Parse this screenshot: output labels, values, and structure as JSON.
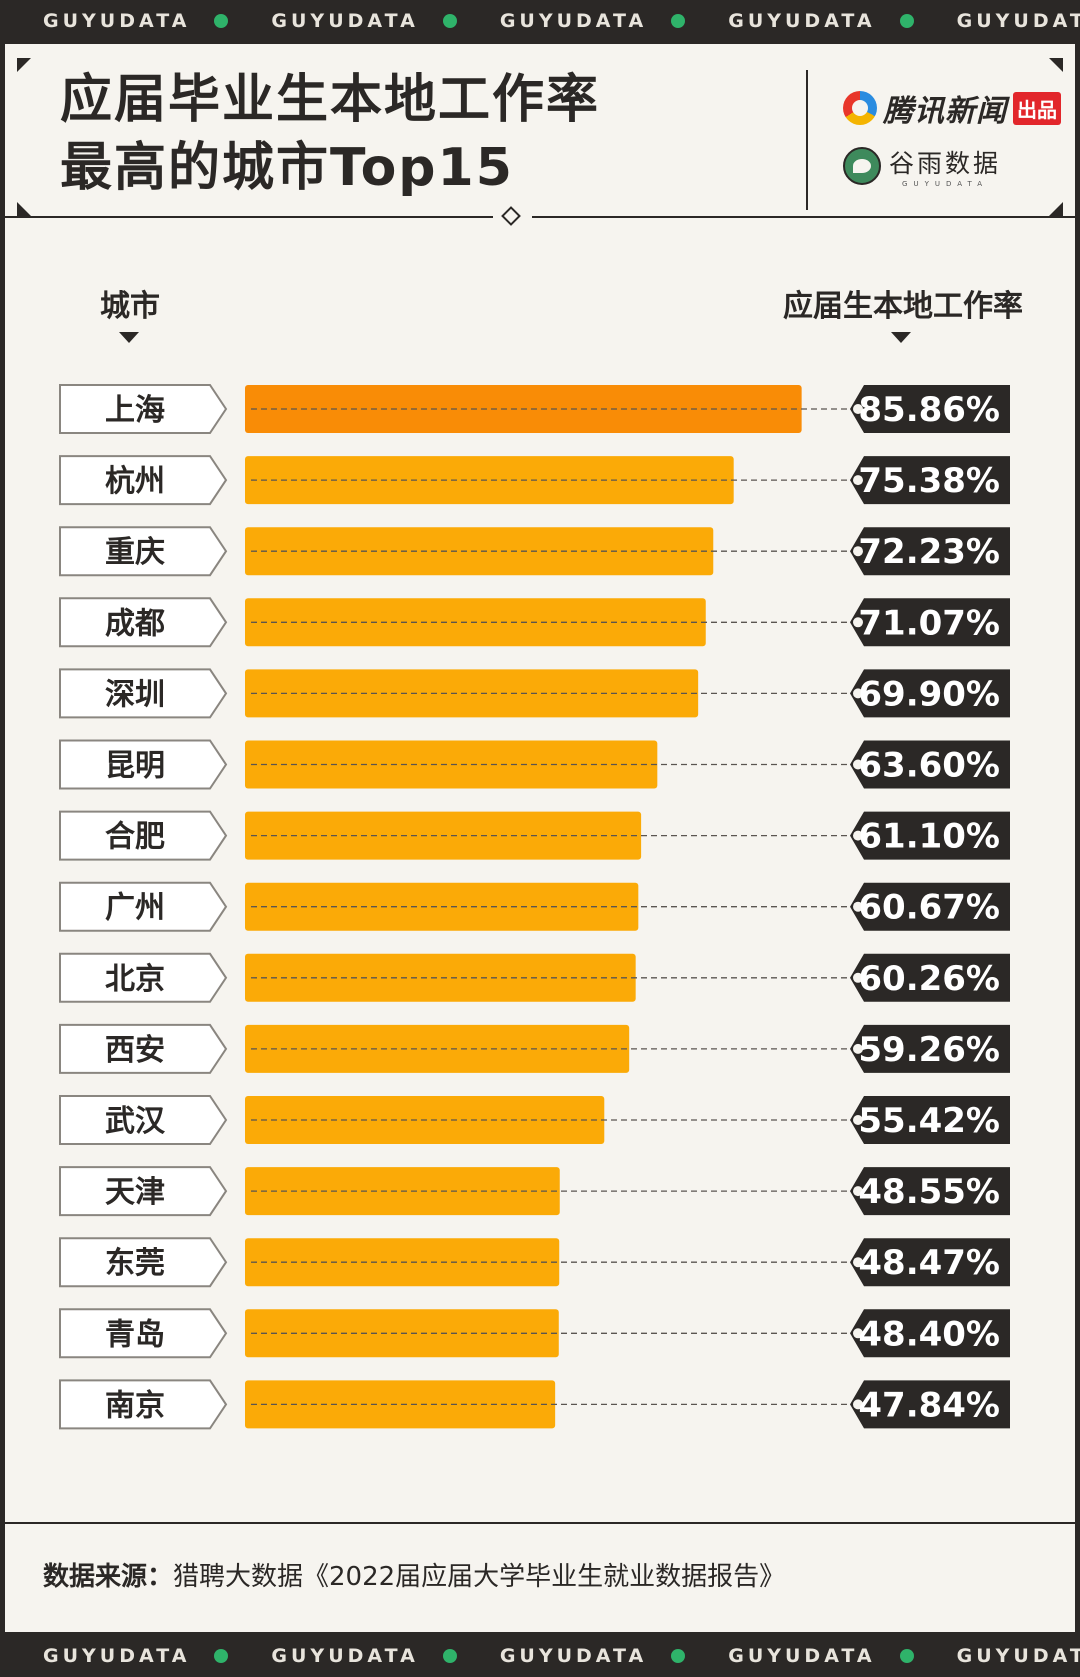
{
  "band_text": "GUYUDATA",
  "title": {
    "line1": "应届毕业生本地工作率",
    "line2": "最高的城市Top15"
  },
  "brand": {
    "tencent_name": "腾讯新闻",
    "tencent_tag": "出品",
    "guyu_name": "谷雨数据",
    "guyu_sub": "GUYUDATA"
  },
  "chart_data": {
    "type": "bar",
    "orientation": "horizontal",
    "title": "应届毕业生本地工作率最高的城市Top15",
    "category_header": "城市",
    "value_header": "应届生本地工作率",
    "unit": "%",
    "categories": [
      "上海",
      "杭州",
      "重庆",
      "成都",
      "深圳",
      "昆明",
      "合肥",
      "广州",
      "北京",
      "西安",
      "武汉",
      "天津",
      "东莞",
      "青岛",
      "南京"
    ],
    "values": [
      85.86,
      75.38,
      72.23,
      71.07,
      69.9,
      63.6,
      61.1,
      60.67,
      60.26,
      59.26,
      55.42,
      48.55,
      48.47,
      48.4,
      47.84
    ],
    "value_labels": [
      "85.86%",
      "75.38%",
      "72.23%",
      "71.07%",
      "69.90%",
      "63.60%",
      "61.10%",
      "60.67%",
      "60.26%",
      "59.26%",
      "55.42%",
      "48.55%",
      "48.47%",
      "48.40%",
      "47.84%"
    ],
    "colors": {
      "top": "#f98c06",
      "rest": "#fbaa07",
      "label_bg": "#2b2826"
    }
  },
  "source": {
    "label": "数据来源：",
    "text": "猎聘大数据《2022届应届大学毕业生就业数据报告》"
  }
}
